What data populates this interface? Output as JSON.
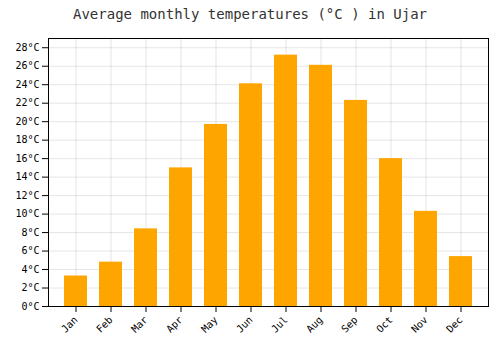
{
  "chart_data": {
    "type": "bar",
    "title": "Average monthly temperatures (°C ) in Ujar",
    "categories": [
      "Jan",
      "Feb",
      "Mar",
      "Apr",
      "May",
      "Jun",
      "Jul",
      "Aug",
      "Sep",
      "Oct",
      "Nov",
      "Dec"
    ],
    "values": [
      3.3,
      4.8,
      8.4,
      15.0,
      19.7,
      24.1,
      27.2,
      26.1,
      22.3,
      16.0,
      10.3,
      5.4
    ],
    "color": "#FFA500",
    "ylim": [
      0,
      29
    ],
    "yticks": [
      {
        "value": 0,
        "label": "0°C"
      },
      {
        "value": 2,
        "label": "2°C"
      },
      {
        "value": 4,
        "label": "4°C"
      },
      {
        "value": 6,
        "label": "6°C"
      },
      {
        "value": 8,
        "label": "8°C"
      },
      {
        "value": 10,
        "label": "10°C"
      },
      {
        "value": 12,
        "label": "12°C"
      },
      {
        "value": 14,
        "label": "14°C"
      },
      {
        "value": 16,
        "label": "16°C"
      },
      {
        "value": 18,
        "label": "18°C"
      },
      {
        "value": 20,
        "label": "20°C"
      },
      {
        "value": 22,
        "label": "22°C"
      },
      {
        "value": 24,
        "label": "24°C"
      },
      {
        "value": 26,
        "label": "26°C"
      },
      {
        "value": 28,
        "label": "28°C"
      }
    ],
    "grid": true
  }
}
